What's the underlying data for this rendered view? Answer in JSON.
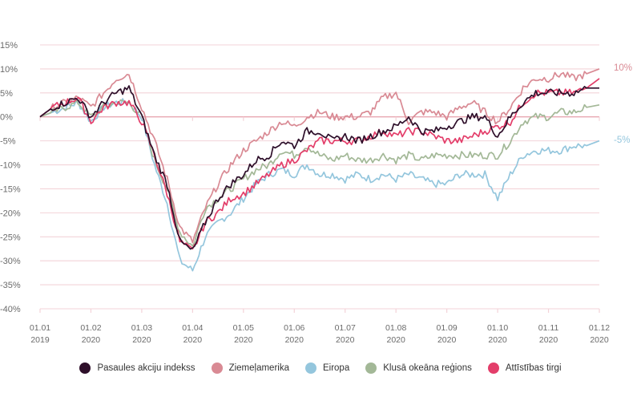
{
  "chart_data": {
    "type": "line",
    "title": "",
    "xlabel": "",
    "ylabel": "",
    "ylim": [
      -40,
      15
    ],
    "yticks": [
      "15%",
      "10%",
      "5%",
      "0%",
      "-5%",
      "-10%",
      "-15%",
      "-20%",
      "-25%",
      "-30%",
      "-35%",
      "-40%"
    ],
    "ytick_values": [
      15,
      10,
      5,
      0,
      -5,
      -10,
      -15,
      -20,
      -25,
      -30,
      -35,
      -40
    ],
    "xticks": [
      {
        "top": "01.01",
        "bottom": "2019"
      },
      {
        "top": "01.02",
        "bottom": "2020"
      },
      {
        "top": "01.03",
        "bottom": "2020"
      },
      {
        "top": "01.04",
        "bottom": "2020"
      },
      {
        "top": "01.05",
        "bottom": "2020"
      },
      {
        "top": "01.06",
        "bottom": "2020"
      },
      {
        "top": "01.07",
        "bottom": "2020"
      },
      {
        "top": "01.08",
        "bottom": "2020"
      },
      {
        "top": "01.09",
        "bottom": "2020"
      },
      {
        "top": "01.10",
        "bottom": "2020"
      },
      {
        "top": "01.11",
        "bottom": "2020"
      },
      {
        "top": "01.12",
        "bottom": "2020"
      }
    ],
    "grid": true,
    "legend_position": "bottom",
    "x": [
      0,
      0.25,
      0.5,
      0.75,
      1,
      1.25,
      1.5,
      1.75,
      2,
      2.25,
      2.5,
      2.75,
      3,
      3.25,
      3.5,
      3.75,
      4,
      4.25,
      4.5,
      4.75,
      5,
      5.25,
      5.5,
      5.75,
      6,
      6.25,
      6.5,
      6.75,
      7,
      7.25,
      7.5,
      7.75,
      8,
      8.25,
      8.5,
      8.75,
      9,
      9.25,
      9.5,
      9.75,
      10,
      10.25,
      10.5,
      10.75,
      11
    ],
    "series": [
      {
        "name": "Pasaules akciju indekss",
        "color": "#2e0f2a",
        "values": [
          0,
          2,
          3,
          4,
          0,
          3,
          5,
          6,
          0,
          -8,
          -14,
          -26,
          -28,
          -22,
          -17,
          -14,
          -12,
          -9,
          -8,
          -5,
          -6,
          -3,
          -3,
          -5,
          -4,
          -5,
          -4,
          -3,
          -2,
          0,
          -3,
          -3,
          -2,
          -1,
          0,
          0,
          -4,
          0,
          3,
          5,
          5,
          5,
          5,
          6,
          6
        ]
      },
      {
        "name": "Ziemeļamerika",
        "color": "#d98a94",
        "values": [
          0,
          2,
          3,
          4,
          2,
          5,
          8,
          9,
          2,
          -5,
          -13,
          -23,
          -26,
          -19,
          -14,
          -10,
          -7,
          -5,
          -3,
          -1,
          -2,
          0,
          1,
          0,
          0,
          0,
          1,
          4,
          5,
          -1,
          1,
          1,
          0,
          2,
          3,
          1,
          -1,
          2,
          6,
          8,
          8,
          9,
          8,
          9,
          10
        ]
      },
      {
        "name": "Eiropa",
        "color": "#94c6dd",
        "values": [
          0,
          1,
          2,
          3,
          -1,
          2,
          3,
          3,
          0,
          -10,
          -18,
          -30,
          -32,
          -25,
          -22,
          -20,
          -17,
          -14,
          -12,
          -11,
          -12,
          -10,
          -12,
          -12,
          -13,
          -12,
          -13,
          -12,
          -13,
          -12,
          -13,
          -14,
          -14,
          -12,
          -12,
          -12,
          -17,
          -12,
          -8,
          -7,
          -7,
          -7,
          -6,
          -6,
          -5
        ]
      },
      {
        "name": "Klusā okeāna reģions",
        "color": "#a3b897",
        "values": [
          0,
          1,
          2,
          3,
          0,
          2,
          3,
          3,
          0,
          -9,
          -15,
          -24,
          -27,
          -19,
          -17,
          -15,
          -13,
          -11,
          -10,
          -7,
          -8,
          -6,
          -8,
          -9,
          -8,
          -9,
          -9,
          -8,
          -9,
          -8,
          -9,
          -8,
          -8,
          -8,
          -8,
          -8,
          -8,
          -5,
          -1,
          0,
          0,
          1,
          1,
          2,
          2.5
        ]
      },
      {
        "name": "Attīstības tirgi",
        "color": "#e33e6a",
        "values": [
          0,
          2,
          3,
          4,
          -1,
          2,
          3,
          3,
          -1,
          -8,
          -16,
          -26,
          -28,
          -22,
          -20,
          -17,
          -16,
          -14,
          -12,
          -10,
          -9,
          -7,
          -5,
          -5,
          -5,
          -5,
          -4,
          -3,
          -4,
          -3,
          -3,
          -4,
          -5,
          -5,
          -4,
          -3,
          -2,
          -1,
          3,
          5,
          5,
          5,
          5,
          6,
          8
        ]
      }
    ],
    "annotations": [
      {
        "text": "10%",
        "series": "Ziemeļamerika",
        "color": "#d98a94",
        "value": 10
      },
      {
        "text": "-5%",
        "series": "Eiropa",
        "color": "#94c6dd",
        "value": -5
      }
    ]
  },
  "colors": {
    "grid": "#f3d3d8",
    "zero_line": "#e8a7b1",
    "tick_text": "#6b6b6b"
  }
}
